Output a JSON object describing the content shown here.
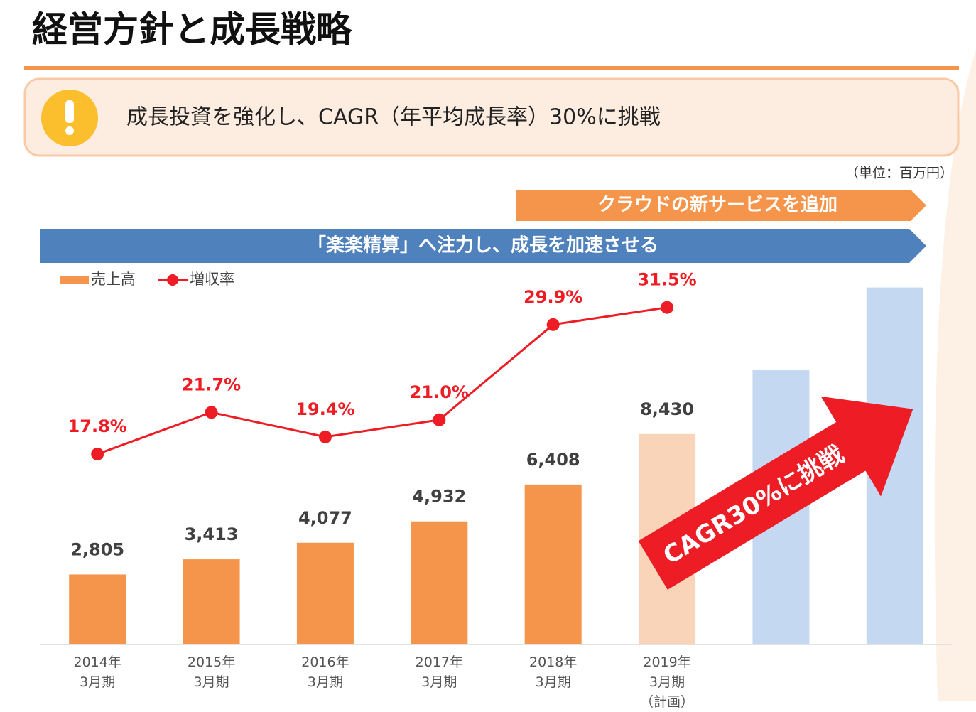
{
  "chart_data": {
    "type": "bar",
    "title": "経営方針と成長戦略",
    "subtitle": "成長投資を強化し、CAGR（年平均成長率）30%に挑戦",
    "unit_label": "（単位：百万円）",
    "annotations": [
      "クラウドの新サービスを追加",
      "「楽楽精算」へ注力し、成長を加速させる",
      "CAGR30%に挑戦"
    ],
    "categories": [
      "2014年\n3月期",
      "2015年\n3月期",
      "2016年\n3月期",
      "2017年\n3月期",
      "2018年\n3月期",
      "2019年\n3月期\n（計画）",
      null,
      null
    ],
    "series": [
      {
        "name": "売上高",
        "color": "#f4954b",
        "colors": [
          "#f4954b",
          "#f4954b",
          "#f4954b",
          "#f4954b",
          "#f4954b",
          "#f9d4b8",
          "#c5d8f1",
          "#c5d8f1"
        ],
        "values": [
          2805,
          3413,
          4077,
          4932,
          6408,
          8430,
          11000,
          14300
        ],
        "value_labels": [
          "2,805",
          "3,413",
          "4,077",
          "4,932",
          "6,408",
          "8,430",
          null,
          null
        ]
      },
      {
        "name": "増収率",
        "color": "#ee1c25",
        "axis": "y2",
        "values": [
          17.8,
          21.7,
          19.4,
          21.0,
          29.9,
          31.5,
          null,
          null
        ],
        "value_labels": [
          "17.8%",
          "21.7%",
          "19.4%",
          "21.0%",
          "29.9%",
          "31.5%",
          null,
          null
        ]
      }
    ],
    "ylim": [
      0,
      15000
    ],
    "y2lim": [
      0,
      35
    ],
    "legend": "top-left"
  }
}
